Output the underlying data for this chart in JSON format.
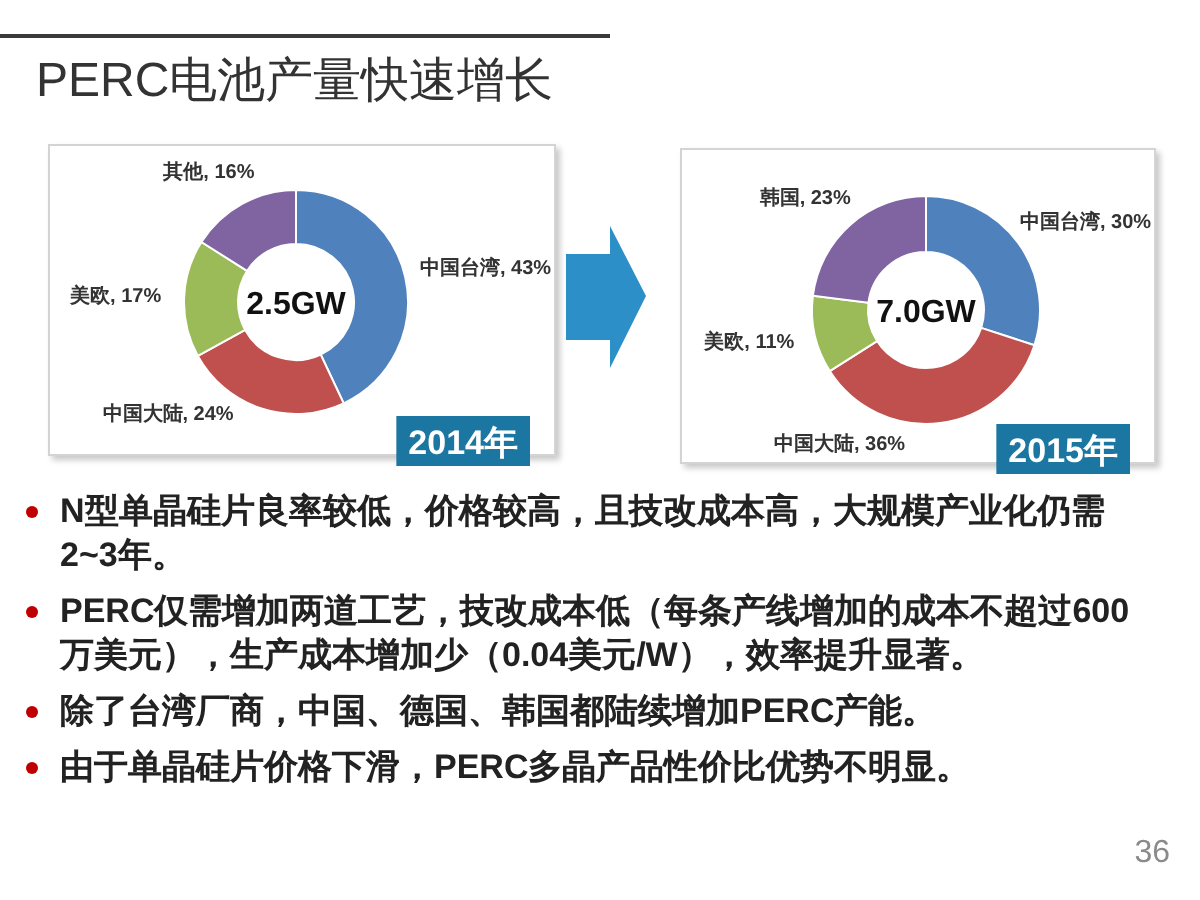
{
  "chart_data": [
    {
      "type": "other",
      "title": "PERC电池产量快速增长"
    },
    {
      "type": "donut",
      "title": "2014年",
      "categories": [
        "中国台湾",
        "中国大陆",
        "美欧",
        "其他"
      ],
      "values": [
        43,
        24,
        17,
        16
      ],
      "colors": [
        "#4f81bd",
        "#c0504d",
        "#9bbb59",
        "#8064a2"
      ],
      "value_labels": [
        "43%",
        "24%",
        "17%",
        "16%"
      ],
      "annotations": [
        "2.5GW"
      ]
    },
    {
      "type": "donut",
      "title": "2015年",
      "categories": [
        "中国台湾",
        "中国大陆",
        "美欧",
        "韩国"
      ],
      "values": [
        30,
        36,
        11,
        23
      ],
      "colors": [
        "#4f81bd",
        "#c0504d",
        "#9bbb59",
        "#8064a2"
      ],
      "value_labels": [
        "30%",
        "36%",
        "11%",
        "23%"
      ],
      "annotations": [
        "7.0GW"
      ]
    },
    {
      "type": "other",
      "annotations": [
        "N型单晶硅片良率较低，价格较高，且技改成本高，大规模产业化仍需2~3年。",
        "PERC仅需增加两道工艺，技改成本低（每条产线增加的成本不超过600万美元），生产成本增加少（0.04美元/W），效率提升显著。",
        "除了台湾厂商，中国、德国、韩国都陆续增加PERC产能。",
        "由于单晶硅片价格下滑，PERC多晶产品性价比优势不明显。"
      ]
    },
    {
      "type": "other",
      "annotations": [
        "36"
      ]
    }
  ]
}
